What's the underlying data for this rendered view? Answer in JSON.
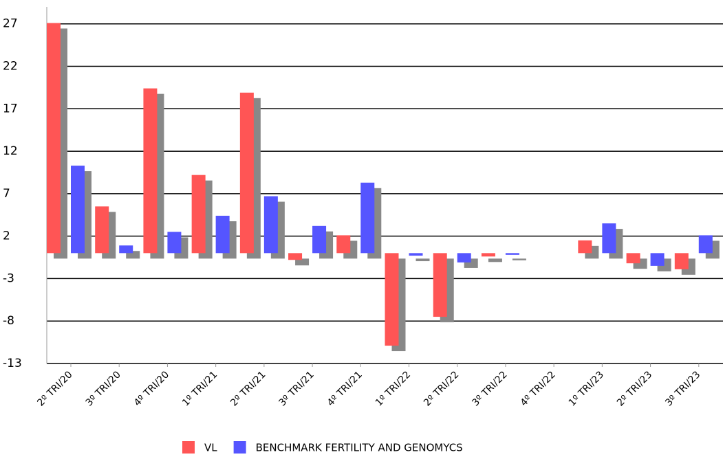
{
  "chart_data": {
    "type": "bar",
    "categories": [
      "2º TRI/20",
      "3º TRI/20",
      "4º TRI/20",
      "1º TRI/21",
      "2º TRI/21",
      "3º TRI/21",
      "4º TRI/21",
      "1º TRI/22",
      "2º TRI/22",
      "3º TRI/22",
      "4º TRI/22",
      "1º TRI/23",
      "2º TRI/23",
      "3º TRI/23"
    ],
    "series": [
      {
        "name": "VL",
        "color": "#ff5555",
        "values": [
          27.1,
          5.5,
          19.4,
          9.2,
          18.9,
          -0.8,
          2.1,
          -10.9,
          -7.5,
          -0.4,
          0,
          1.5,
          -1.2,
          -1.9
        ]
      },
      {
        "name": "BENCHMARK FERTILITY AND GENOMYCS",
        "color": "#5555ff",
        "values": [
          10.3,
          0.9,
          2.5,
          4.4,
          6.7,
          3.2,
          8.3,
          -0.3,
          -1.1,
          -0.2,
          0,
          3.5,
          -1.5,
          2.1
        ]
      }
    ],
    "ylim": [
      -13,
      29
    ],
    "yticks": [
      -13,
      -8,
      -3,
      2,
      7,
      12,
      17,
      22,
      27
    ],
    "grid": true,
    "legend": "bottom"
  }
}
